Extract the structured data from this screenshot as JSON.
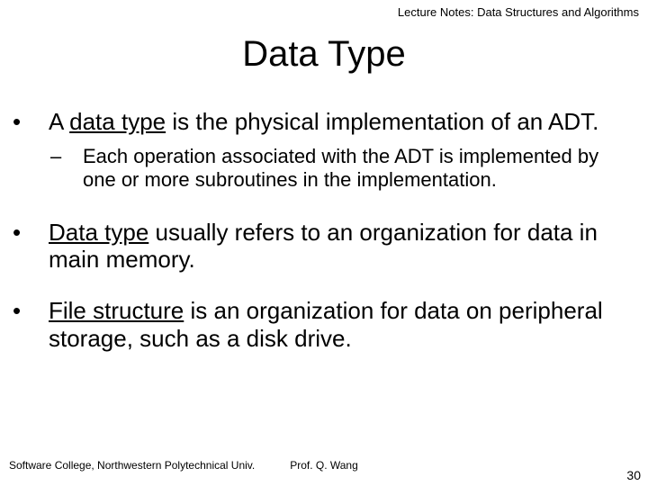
{
  "header": {
    "text": "Lecture Notes: Data Structures and Algorithms"
  },
  "title": {
    "text": "Data Type"
  },
  "bullets": {
    "b1": {
      "pre": "A ",
      "u": "data type",
      "post": " is the physical implementation of an ADT."
    },
    "b1a": {
      "text": "Each operation associated with the ADT is implemented by one or more subroutines in the implementation."
    },
    "b2": {
      "u": "Data type",
      "post": " usually refers to an organization for data in main memory."
    },
    "b3": {
      "u": "File structure",
      "post": " is an organization for data on peripheral storage, such as a disk drive."
    }
  },
  "footer": {
    "left": "Software College, Northwestern Polytechnical Univ.",
    "center": "Prof. Q. Wang",
    "page": "30"
  },
  "style": {
    "title_fontsize": 40,
    "bullet1_fontsize": 26,
    "bullet2_fontsize": 22,
    "header_fontsize": 13,
    "footer_fontsize": 12,
    "text_color": "#000000",
    "background_color": "#ffffff"
  }
}
